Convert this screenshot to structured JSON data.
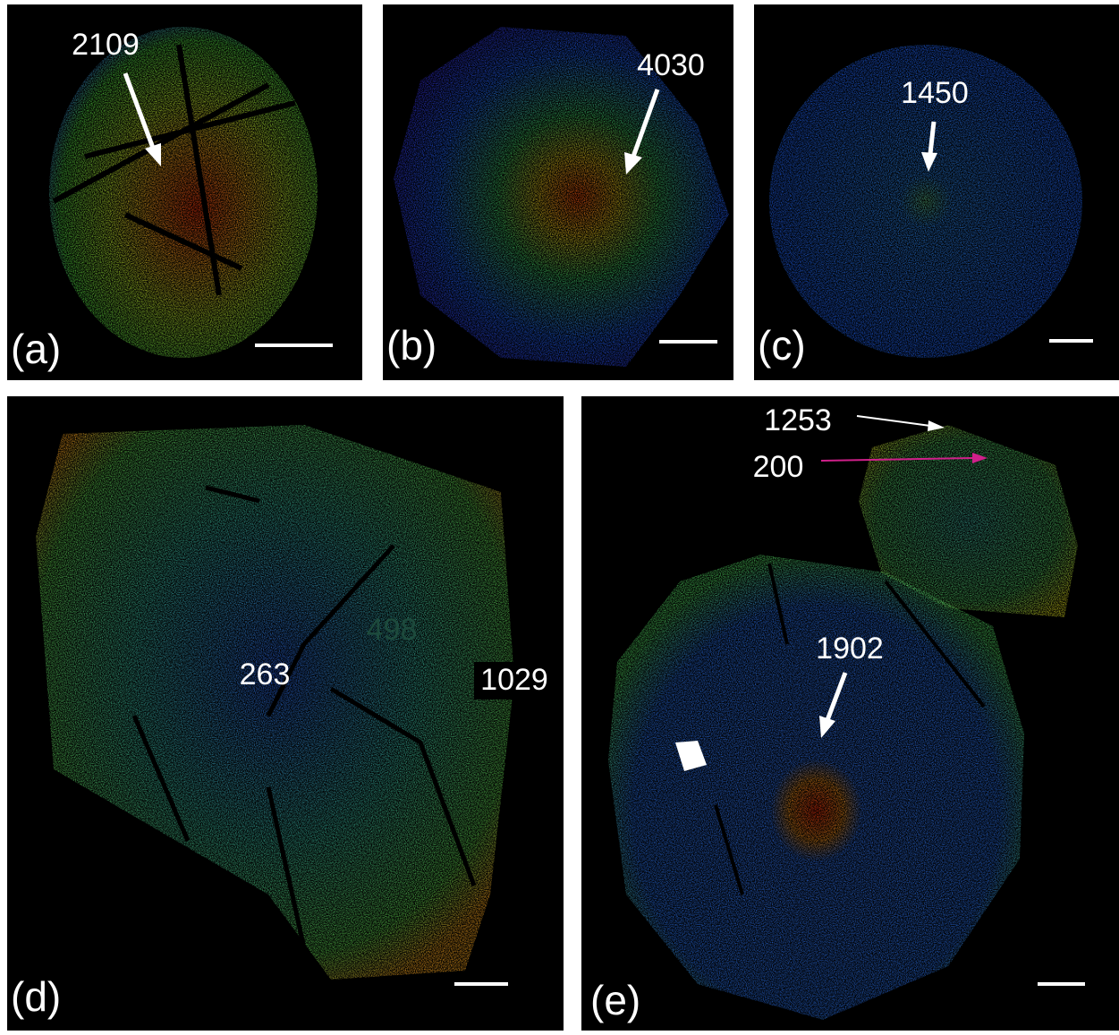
{
  "panels": [
    {
      "label": "(a)",
      "annotations": [
        "2109"
      ]
    },
    {
      "label": "(b)",
      "annotations": [
        "4030"
      ]
    },
    {
      "label": "(c)",
      "annotations": [
        "1450"
      ]
    },
    {
      "label": "(d)",
      "annotations": [
        "498",
        "263",
        "1029"
      ]
    },
    {
      "label": "(e)",
      "annotations": [
        "1253",
        "200",
        "1902"
      ]
    }
  ]
}
